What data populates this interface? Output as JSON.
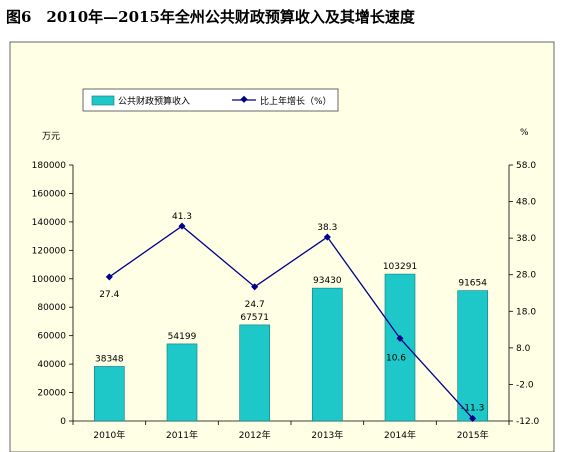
{
  "title": "图6　2010年—2015年全州公共财政预算收入及其增长速度",
  "colors": {
    "background": "#ffffe6",
    "bar_fill": "#1fc8c8",
    "bar_stroke": "#0e7a7a",
    "line": "#00008b"
  },
  "chart_data": {
    "type": "bar",
    "categories": [
      "2010年",
      "2011年",
      "2012年",
      "2013年",
      "2014年",
      "2015年"
    ],
    "series": [
      {
        "name": "公共财政预算收入",
        "type": "bar",
        "axis": "left",
        "values": [
          38348,
          54199,
          67571,
          93430,
          103291,
          91654
        ],
        "labels": [
          "38348",
          "54199",
          "67571",
          "93430",
          "103291",
          "91654"
        ]
      },
      {
        "name": "比上年增长（%）",
        "type": "line",
        "axis": "right",
        "values": [
          27.4,
          41.3,
          24.7,
          38.3,
          10.6,
          -11.3
        ],
        "labels": [
          "27.4",
          "41.3",
          "24.7",
          "38.3",
          "10.6",
          "-11.3"
        ]
      }
    ],
    "ylabel_left": "万元",
    "ylabel_right": "%",
    "ylim_left": [
      0,
      180000
    ],
    "yticks_left": [
      "0",
      "20000",
      "40000",
      "60000",
      "80000",
      "100000",
      "120000",
      "140000",
      "160000",
      "180000"
    ],
    "ylim_right": [
      -12,
      58
    ],
    "yticks_right": [
      "-12.0",
      "-2.0",
      "8.0",
      "18.0",
      "28.0",
      "38.0",
      "48.0",
      "58.0"
    ],
    "legend_position": "top-left",
    "grid": false
  }
}
